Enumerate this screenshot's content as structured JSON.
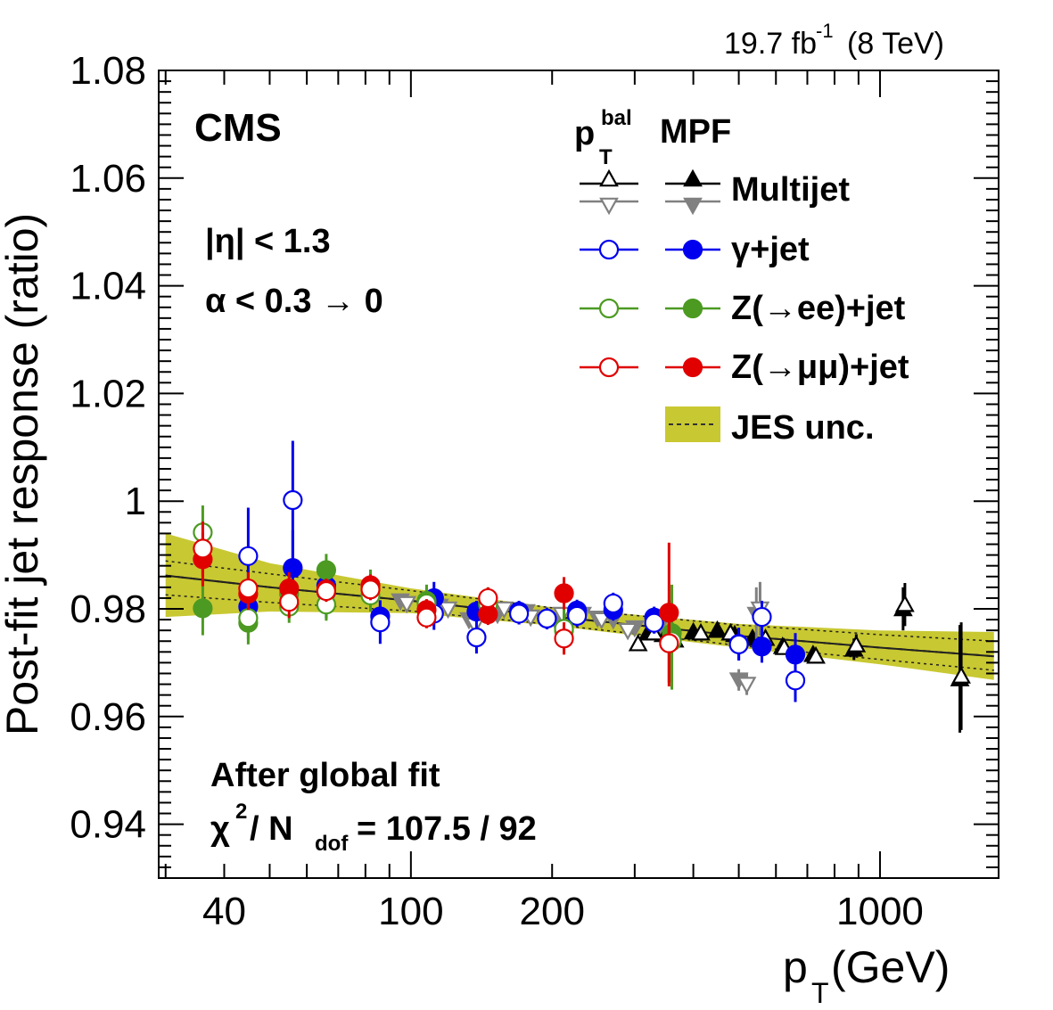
{
  "chart_data": {
    "type": "scatter",
    "lumi_label": "19.7 fb",
    "lumi_sup": "-1",
    "energy_label": "(8 TeV)",
    "experiment": "CMS",
    "eta_cut": "|η| < 1.3",
    "alpha_cut": "α < 0.3 → 0",
    "fit_label": "After global fit",
    "chi2_label": "χ",
    "chi2_sup": "2",
    "chi2_mid": " / N",
    "chi2_sub": "dof",
    "chi2_value": " = 107.5 / 92",
    "ylabel": "Post-fit jet response (ratio)",
    "xlabel_main": "p",
    "xlabel_sub": "T",
    "xlabel_unit": " (GeV)",
    "xscale": "log",
    "xlim": [
      29,
      1790
    ],
    "ylim": [
      0.93,
      1.08
    ],
    "xticks": [
      40,
      100,
      200,
      1000
    ],
    "xtick_labels": [
      "40",
      "100",
      "200",
      "1000"
    ],
    "yticks": [
      0.94,
      0.96,
      0.98,
      1.0,
      1.02,
      1.04,
      1.06,
      1.08
    ],
    "ytick_labels": [
      "0.94",
      "0.96",
      "0.98",
      "1",
      "1.02",
      "1.04",
      "1.06",
      "1.08"
    ],
    "legend": {
      "col_ptbal": "p",
      "col_ptbal_sup": "bal",
      "col_ptbal_sub": "T",
      "col_mpf": "MPF",
      "entries": [
        {
          "label": "Multijet",
          "color": "#000000"
        },
        {
          "label": "γ+jet",
          "color": "#0000ee"
        },
        {
          "label": "Z(→ee)+jet",
          "color": "#4c9a22"
        },
        {
          "label": "Z(→μμ)+jet",
          "color": "#e00000"
        },
        {
          "label": "JES unc.",
          "color": "#c8c832"
        }
      ]
    },
    "band": {
      "color": "#c8c832",
      "x": [
        30,
        50,
        100,
        200,
        500,
        1000,
        1750
      ],
      "center": [
        0.9862,
        0.984,
        0.9815,
        0.9786,
        0.975,
        0.9728,
        0.9712
      ],
      "upper": [
        0.994,
        0.9885,
        0.9838,
        0.9803,
        0.9772,
        0.976,
        0.9757
      ],
      "lower": [
        0.9785,
        0.9795,
        0.9792,
        0.9769,
        0.9728,
        0.9697,
        0.9668
      ],
      "inner_upper": [
        0.9889,
        0.9865,
        0.9834,
        0.9802,
        0.977,
        0.9752,
        0.974
      ],
      "inner_lower": [
        0.9826,
        0.9812,
        0.9796,
        0.9771,
        0.9732,
        0.9706,
        0.9686
      ]
    },
    "series": [
      {
        "name": "Multijet MPF",
        "marker": "triangle-up",
        "filled": true,
        "color": "#000000",
        "points": [
          [
            320,
            0.9755
          ],
          [
            345,
            0.9752
          ],
          [
            365,
            0.9742
          ],
          [
            400,
            0.9757
          ],
          [
            450,
            0.976
          ],
          [
            490,
            0.9752
          ],
          [
            535,
            0.9745
          ],
          [
            620,
            0.973
          ],
          [
            720,
            0.9715
          ],
          [
            880,
            0.9725
          ],
          [
            1120,
            0.98
          ],
          [
            1480,
            0.967
          ]
        ],
        "errors": [
          0.001,
          0.001,
          0.001,
          0.001,
          0.001,
          0.001,
          0.001,
          0.001,
          0.0015,
          0.002,
          0.004,
          0.01
        ]
      },
      {
        "name": "Multijet MPF gray",
        "marker": "triangle-down",
        "filled": true,
        "color": "#808080",
        "points": [
          [
            95,
            0.9815
          ],
          [
            115,
            0.9805
          ],
          [
            133,
            0.978
          ],
          [
            153,
            0.979
          ],
          [
            176,
            0.9795
          ],
          [
            203,
            0.978
          ],
          [
            232,
            0.979
          ],
          [
            250,
            0.9783
          ],
          [
            270,
            0.978
          ],
          [
            300,
            0.9765
          ],
          [
            340,
            0.977
          ],
          [
            500,
            0.9668
          ],
          [
            545,
            0.979
          ]
        ],
        "errors": [
          0.001,
          0.001,
          0.001,
          0.001,
          0.001,
          0.001,
          0.001,
          0.001,
          0.001,
          0.001,
          0.001,
          0.002,
          0.005
        ]
      },
      {
        "name": "Multijet pTbal",
        "marker": "triangle-up",
        "filled": false,
        "color": "#000000",
        "points": [
          [
            305,
            0.9735
          ],
          [
            330,
            0.9755
          ],
          [
            360,
            0.976
          ],
          [
            415,
            0.9755
          ],
          [
            480,
            0.9755
          ],
          [
            570,
            0.9745
          ],
          [
            625,
            0.9728
          ],
          [
            730,
            0.9712
          ],
          [
            890,
            0.9733
          ],
          [
            1130,
            0.9808
          ],
          [
            1490,
            0.9675
          ]
        ],
        "errors": [
          0.001,
          0.001,
          0.001,
          0.001,
          0.001,
          0.001,
          0.001,
          0.001,
          0.002,
          0.004,
          0.01
        ]
      },
      {
        "name": "Multijet pTbal gray",
        "marker": "triangle-down",
        "filled": false,
        "color": "#808080",
        "points": [
          [
            98,
            0.981
          ],
          [
            120,
            0.98
          ],
          [
            137,
            0.977
          ],
          [
            158,
            0.98
          ],
          [
            180,
            0.9785
          ],
          [
            210,
            0.979
          ],
          [
            255,
            0.978
          ],
          [
            290,
            0.976
          ],
          [
            520,
            0.966
          ],
          [
            555,
            0.98
          ]
        ],
        "errors": [
          0.001,
          0.001,
          0.001,
          0.001,
          0.001,
          0.001,
          0.001,
          0.001,
          0.002,
          0.005
        ]
      },
      {
        "name": "γ+jet MPF",
        "marker": "circle",
        "filled": true,
        "color": "#0000ee",
        "points": [
          [
            45,
            0.9804
          ],
          [
            56,
            0.9876
          ],
          [
            66,
            0.9843
          ],
          [
            86,
            0.9786
          ],
          [
            112,
            0.982
          ],
          [
            138,
            0.9795
          ],
          [
            170,
            0.9795
          ],
          [
            195,
            0.9782
          ],
          [
            226,
            0.9797
          ],
          [
            270,
            0.9798
          ],
          [
            330,
            0.9784
          ],
          [
            500,
            0.9735
          ],
          [
            560,
            0.973
          ],
          [
            660,
            0.9715
          ]
        ],
        "errors": [
          0.004,
          0.007,
          0.004,
          0.003,
          0.003,
          0.002,
          0.002,
          0.002,
          0.002,
          0.002,
          0.002,
          0.003,
          0.003,
          0.004
        ]
      },
      {
        "name": "γ+jet pTbal",
        "marker": "circle",
        "filled": false,
        "color": "#0000ee",
        "points": [
          [
            45,
            0.9898
          ],
          [
            56,
            1.0002
          ],
          [
            66,
            0.9832
          ],
          [
            86,
            0.9775
          ],
          [
            112,
            0.9791
          ],
          [
            138,
            0.9747
          ],
          [
            170,
            0.9791
          ],
          [
            195,
            0.9782
          ],
          [
            226,
            0.9787
          ],
          [
            270,
            0.981
          ],
          [
            330,
            0.9774
          ],
          [
            500,
            0.9734
          ],
          [
            560,
            0.9785
          ],
          [
            660,
            0.9667
          ]
        ],
        "errors": [
          0.009,
          0.011,
          0.005,
          0.004,
          0.003,
          0.003,
          0.002,
          0.002,
          0.002,
          0.002,
          0.002,
          0.003,
          0.003,
          0.004
        ]
      },
      {
        "name": "Z(→ee)+jet MPF",
        "marker": "circle",
        "filled": true,
        "color": "#4c9a22",
        "points": [
          [
            36,
            0.9801
          ],
          [
            45,
            0.9774
          ],
          [
            55,
            0.9828
          ],
          [
            66,
            0.9872
          ],
          [
            82,
            0.9843
          ],
          [
            108,
            0.9815
          ],
          [
            146,
            0.981
          ],
          [
            212,
            0.976
          ],
          [
            360,
            0.9755
          ]
        ],
        "errors": [
          0.005,
          0.004,
          0.003,
          0.003,
          0.003,
          0.003,
          0.003,
          0.004,
          0.009
        ]
      },
      {
        "name": "Z(→ee)+jet pTbal",
        "marker": "circle",
        "filled": false,
        "color": "#4c9a22",
        "points": [
          [
            36,
            0.9942
          ],
          [
            45,
            0.9783
          ],
          [
            55,
            0.9804
          ],
          [
            66,
            0.9808
          ],
          [
            82,
            0.9825
          ],
          [
            108,
            0.981
          ],
          [
            146,
            0.9808
          ],
          [
            212,
            0.9763
          ],
          [
            360,
            0.974
          ]
        ],
        "errors": [
          0.005,
          0.004,
          0.003,
          0.003,
          0.003,
          0.003,
          0.003,
          0.004,
          0.009
        ]
      },
      {
        "name": "Z(→μμ)+jet MPF",
        "marker": "circle",
        "filled": true,
        "color": "#e00000",
        "points": [
          [
            36,
            0.9892
          ],
          [
            45,
            0.9828
          ],
          [
            55,
            0.9838
          ],
          [
            66,
            0.9836
          ],
          [
            82,
            0.9844
          ],
          [
            108,
            0.9798
          ],
          [
            146,
            0.979
          ],
          [
            212,
            0.9829
          ],
          [
            355,
            0.9793
          ]
        ],
        "errors": [
          0.005,
          0.003,
          0.003,
          0.002,
          0.002,
          0.002,
          0.002,
          0.003,
          0.013
        ]
      },
      {
        "name": "Z(→μμ)+jet pTbal",
        "marker": "circle",
        "filled": false,
        "color": "#e00000",
        "points": [
          [
            36,
            0.9912
          ],
          [
            45,
            0.9838
          ],
          [
            55,
            0.9813
          ],
          [
            66,
            0.9833
          ],
          [
            82,
            0.9836
          ],
          [
            108,
            0.9784
          ],
          [
            146,
            0.982
          ],
          [
            212,
            0.9745
          ],
          [
            355,
            0.9736
          ]
        ],
        "errors": [
          0.005,
          0.003,
          0.003,
          0.002,
          0.002,
          0.002,
          0.002,
          0.003,
          0.008
        ]
      }
    ]
  }
}
